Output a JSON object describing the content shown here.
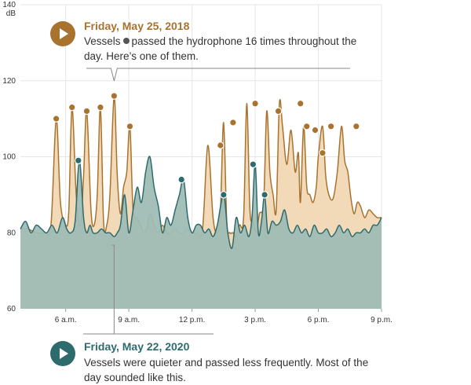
{
  "chart_data": {
    "type": "area",
    "ylabel": "dB",
    "ylim": [
      60,
      140
    ],
    "yticks": [
      60,
      80,
      100,
      120,
      140
    ],
    "xlim": [
      3.85,
      21.0
    ],
    "xticks": [
      {
        "value": 6,
        "label": "6 a.m."
      },
      {
        "value": 9,
        "label": "9 a.m."
      },
      {
        "value": 12,
        "label": "12 p.m."
      },
      {
        "value": 15,
        "label": "3 p.m."
      },
      {
        "value": 18,
        "label": "6 p.m."
      },
      {
        "value": 21,
        "label": "9 p.m."
      }
    ],
    "grid": true,
    "series": [
      {
        "date": "Friday, May 25, 2018",
        "color": "#a8732e",
        "fill": "#f2d9b8",
        "x": [
          3.85,
          4.2,
          4.6,
          5.0,
          5.3,
          5.55,
          5.75,
          6.0,
          6.15,
          6.3,
          6.5,
          6.7,
          6.85,
          7.0,
          7.2,
          7.35,
          7.5,
          7.65,
          7.8,
          7.95,
          8.1,
          8.3,
          8.45,
          8.6,
          8.75,
          8.9,
          9.05,
          9.2,
          9.4,
          9.55,
          9.7,
          9.85,
          10.0,
          10.2,
          10.4,
          10.6,
          10.8,
          11.0,
          11.2,
          11.4,
          11.6,
          11.8,
          12.0,
          12.2,
          12.5,
          12.75,
          13.0,
          13.2,
          13.35,
          13.5,
          13.65,
          13.8,
          13.95,
          14.1,
          14.25,
          14.45,
          14.6,
          14.75,
          14.9,
          15.05,
          15.2,
          15.4,
          15.55,
          15.7,
          15.85,
          16.0,
          16.15,
          16.3,
          16.5,
          16.7,
          16.9,
          17.05,
          17.15,
          17.3,
          17.45,
          17.6,
          17.75,
          17.9,
          18.0,
          18.2,
          18.35,
          18.5,
          18.7,
          18.9,
          19.1,
          19.25,
          19.4,
          19.55,
          19.7,
          19.85,
          20.0,
          20.2,
          20.4,
          20.6,
          20.8,
          21.0
        ],
        "y": [
          81,
          81,
          80,
          80,
          82,
          110,
          88,
          82,
          86,
          113,
          90,
          82,
          95,
          112,
          86,
          82,
          90,
          113,
          83,
          82,
          90,
          116,
          95,
          85,
          92,
          96,
          108,
          86,
          84,
          82,
          80,
          81,
          85,
          82,
          80,
          82,
          80,
          80,
          81,
          80,
          80,
          81,
          80,
          80,
          81,
          103,
          84,
          80,
          86,
          109,
          83,
          80,
          80,
          79,
          82,
          84,
          114,
          86,
          83,
          80,
          85,
          88,
          112,
          96,
          90,
          86,
          114,
          108,
          98,
          107,
          96,
          101,
          88,
          108,
          92,
          90,
          88,
          92,
          100,
          108,
          95,
          90,
          89,
          96,
          108,
          99,
          96,
          89,
          85,
          88,
          87,
          84,
          86,
          85,
          84,
          84
        ],
        "peak_markers": [
          {
            "x": 5.55,
            "y": 110
          },
          {
            "x": 6.3,
            "y": 113
          },
          {
            "x": 7.0,
            "y": 112
          },
          {
            "x": 7.65,
            "y": 113
          },
          {
            "x": 8.3,
            "y": 116
          },
          {
            "x": 9.05,
            "y": 108
          },
          {
            "x": 13.35,
            "y": 103
          },
          {
            "x": 13.95,
            "y": 109
          },
          {
            "x": 15.0,
            "y": 114
          },
          {
            "x": 16.1,
            "y": 112
          },
          {
            "x": 17.15,
            "y": 114
          },
          {
            "x": 17.45,
            "y": 108
          },
          {
            "x": 17.85,
            "y": 107
          },
          {
            "x": 18.2,
            "y": 101
          },
          {
            "x": 18.6,
            "y": 108
          },
          {
            "x": 19.8,
            "y": 108
          }
        ]
      },
      {
        "date": "Friday, May 22, 2020",
        "color": "#2e6b6d",
        "fill": "#9fbdb5",
        "x": [
          3.85,
          4.1,
          4.35,
          4.6,
          4.85,
          5.1,
          5.35,
          5.6,
          5.85,
          6.05,
          6.25,
          6.45,
          6.65,
          6.85,
          7.0,
          7.15,
          7.3,
          7.5,
          7.7,
          7.9,
          8.1,
          8.3,
          8.45,
          8.6,
          8.8,
          9.0,
          9.2,
          9.4,
          9.6,
          9.8,
          10.0,
          10.2,
          10.4,
          10.6,
          10.8,
          11.0,
          11.2,
          11.4,
          11.6,
          11.8,
          12.0,
          12.2,
          12.4,
          12.6,
          12.8,
          13.0,
          13.2,
          13.5,
          13.7,
          13.9,
          14.1,
          14.3,
          14.5,
          14.7,
          14.85,
          15.0,
          15.15,
          15.3,
          15.45,
          15.6,
          15.8,
          16.0,
          16.2,
          16.4,
          16.6,
          16.8,
          17.0,
          17.2,
          17.4,
          17.6,
          17.8,
          18.0,
          18.2,
          18.4,
          18.6,
          18.8,
          19.0,
          19.2,
          19.4,
          19.6,
          19.8,
          20.0,
          20.2,
          20.4,
          20.6,
          20.8,
          21.0
        ],
        "y": [
          81,
          83,
          80,
          82,
          81,
          80,
          82,
          80,
          84,
          81,
          80,
          83,
          99,
          84,
          80,
          82,
          80,
          80,
          81,
          80,
          80,
          79,
          80,
          82,
          90,
          80,
          86,
          92,
          88,
          96,
          100,
          92,
          87,
          80,
          84,
          82,
          86,
          90,
          94,
          84,
          80,
          82,
          82,
          80,
          81,
          79,
          82,
          90,
          80,
          76,
          84,
          80,
          82,
          79,
          84,
          98,
          80,
          83,
          90,
          80,
          83,
          82,
          83,
          86,
          81,
          80,
          82,
          80,
          81,
          79,
          82,
          80,
          80,
          81,
          79,
          80,
          82,
          80,
          81,
          79,
          80,
          80,
          81,
          80,
          82,
          82,
          84
        ],
        "peak_markers": [
          {
            "x": 6.6,
            "y": 99
          },
          {
            "x": 11.5,
            "y": 94
          },
          {
            "x": 13.5,
            "y": 90
          },
          {
            "x": 14.9,
            "y": 98
          },
          {
            "x": 15.45,
            "y": 90
          }
        ]
      }
    ]
  },
  "callouts": {
    "top": {
      "title": "Friday, May 25, 2018",
      "body_before": "Vessels",
      "body_after": "passed the hydrophone 16 times throughout the day. Here’s one of them.",
      "color": "#a8732e",
      "play_icon": "play-icon"
    },
    "bottom": {
      "title": "Friday, May 22, 2020",
      "body": "Vessels were quieter and passed less frequently. Most of the day sounded like this.",
      "color": "#2e6b6d",
      "play_icon": "play-icon"
    }
  },
  "annotations": {
    "focus_x_2018": 8.3,
    "focus_x_2020": 8.3
  }
}
